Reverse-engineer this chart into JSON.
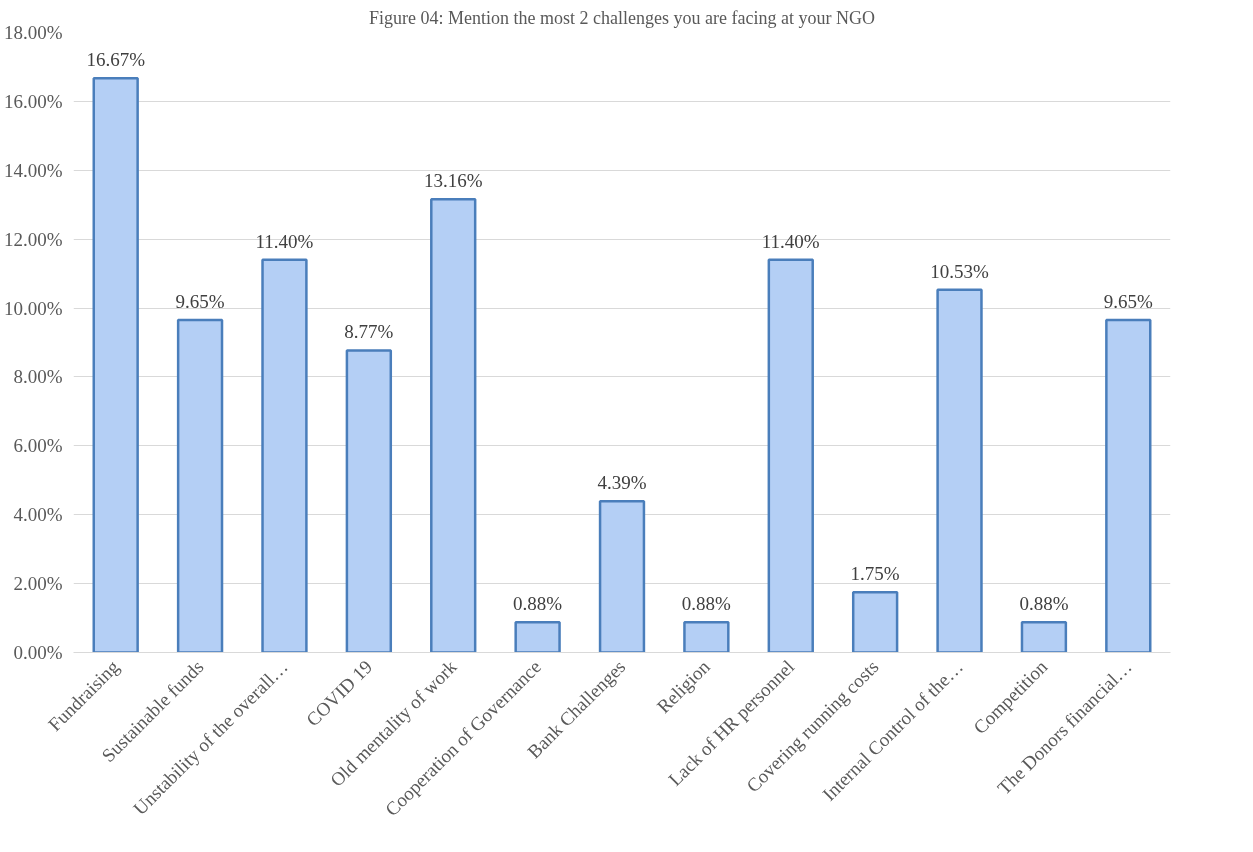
{
  "chart_data": {
    "type": "bar",
    "title": "Figure 04: Mention the most 2 challenges you are facing at your NGO",
    "categories": [
      "Fundraising",
      "Sustainable funds",
      "Unstability of the overall…",
      "COVID 19",
      "Old mentality of work",
      "Cooperation of Governance",
      "Bank Challenges",
      "Religion",
      "Lack of HR personnel",
      "Covering running costs",
      "Internal Control of the…",
      "Competition",
      "The Donors financial…"
    ],
    "values": [
      16.67,
      9.65,
      11.4,
      8.77,
      13.16,
      0.88,
      4.39,
      0.88,
      11.4,
      1.75,
      10.53,
      0.88,
      9.65
    ],
    "value_labels": [
      "16.67%",
      "9.65%",
      "11.40%",
      "8.77%",
      "13.16%",
      "0.88%",
      "4.39%",
      "0.88%",
      "11.40%",
      "1.75%",
      "10.53%",
      "0.88%",
      "9.65%"
    ],
    "color": "#b4cff5",
    "ylim": [
      0,
      18
    ],
    "yticks": [
      {
        "value": 0,
        "label": "0.00%"
      },
      {
        "value": 2,
        "label": "2.00%"
      },
      {
        "value": 4,
        "label": "4.00%"
      },
      {
        "value": 6,
        "label": "6.00%"
      },
      {
        "value": 8,
        "label": "8.00%"
      },
      {
        "value": 10,
        "label": "10.00%"
      },
      {
        "value": 12,
        "label": "12.00%"
      },
      {
        "value": 14,
        "label": "14.00%"
      },
      {
        "value": 16,
        "label": "16.00%"
      },
      {
        "value": 18,
        "label": "18.00%"
      }
    ],
    "grid": "y"
  }
}
